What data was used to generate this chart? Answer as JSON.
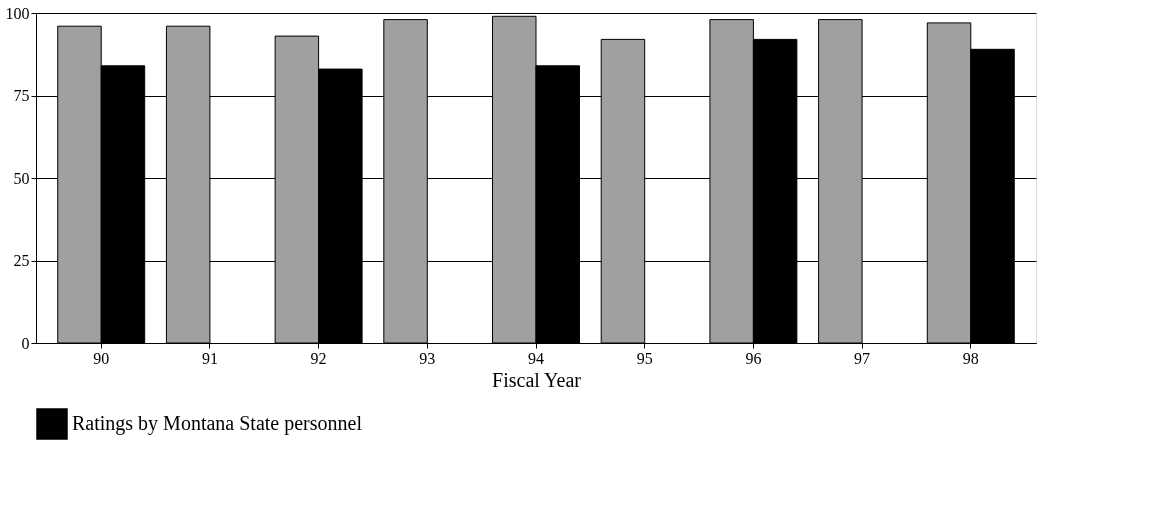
{
  "chart_data": {
    "type": "bar",
    "xlabel": "Fiscal Year",
    "categories": [
      "90",
      "91",
      "92",
      "93",
      "94",
      "95",
      "96",
      "97",
      "98"
    ],
    "series": [
      {
        "color": "#a0a0a0",
        "values": [
          96,
          96,
          93,
          98,
          99,
          92,
          98,
          98,
          97
        ]
      },
      {
        "name": "Ratings by Montana State personnel",
        "color": "#000000",
        "values": [
          84,
          null,
          83,
          null,
          84,
          null,
          92,
          null,
          89
        ]
      }
    ],
    "ylim": [
      0,
      100
    ],
    "yticks": [
      0,
      25,
      50,
      75,
      100
    ],
    "grid": "y",
    "legend": "bottom"
  }
}
